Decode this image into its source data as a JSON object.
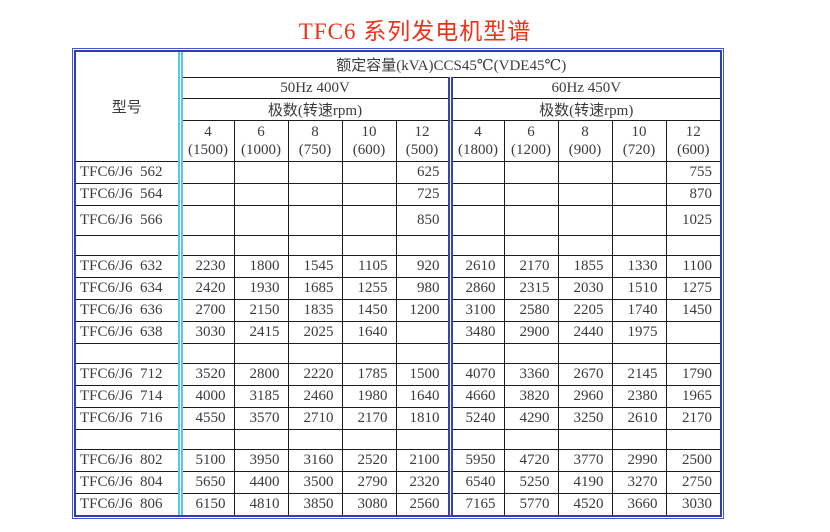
{
  "title": "TFC6 系列发电机型谱",
  "colors": {
    "title_red": "#ed3118",
    "outer_border_blue": "#2e3eb2",
    "model_divider_cyan": "#58c6ee",
    "group_divider_blue": "#3243b6",
    "grid_line": "#1b1b1b"
  },
  "table": {
    "model_header": "型号",
    "capacity_header": "额定容量(kVA)CCS45℃(VDE45℃)",
    "groups": [
      {
        "label": "50Hz 400V",
        "poles_label": "极数(转速rpm)"
      },
      {
        "label": "60Hz 450V",
        "poles_label": "极数(转速rpm)"
      }
    ],
    "columns": [
      {
        "pole": "4",
        "rpm": "(1500)"
      },
      {
        "pole": "6",
        "rpm": "(1000)"
      },
      {
        "pole": "8",
        "rpm": "(750)"
      },
      {
        "pole": "10",
        "rpm": "(600)"
      },
      {
        "pole": "12",
        "rpm": "(500)"
      },
      {
        "pole": "4",
        "rpm": "(1800)"
      },
      {
        "pole": "6",
        "rpm": "(1200)"
      },
      {
        "pole": "8",
        "rpm": "(900)"
      },
      {
        "pole": "10",
        "rpm": "(720)"
      },
      {
        "pole": "12",
        "rpm": "(600)"
      }
    ],
    "rows": [
      {
        "model": "TFC6/J6  562",
        "values": [
          "",
          "",
          "",
          "",
          "625",
          "",
          "",
          "",
          "",
          "755"
        ]
      },
      {
        "model": "TFC6/J6  564",
        "values": [
          "",
          "",
          "",
          "",
          "725",
          "",
          "",
          "",
          "",
          "870"
        ]
      },
      {
        "model": "TFC6/J6  566",
        "tall": true,
        "values": [
          "",
          "",
          "",
          "",
          "850",
          "",
          "",
          "",
          "",
          "1025"
        ]
      },
      {
        "spacer": true,
        "model": "",
        "values": [
          "",
          "",
          "",
          "",
          "",
          "",
          "",
          "",
          "",
          ""
        ]
      },
      {
        "model": "TFC6/J6  632",
        "values": [
          "2230",
          "1800",
          "1545",
          "1105",
          "920",
          "2610",
          "2170",
          "1855",
          "1330",
          "1100"
        ]
      },
      {
        "model": "TFC6/J6  634",
        "values": [
          "2420",
          "1930",
          "1685",
          "1255",
          "980",
          "2860",
          "2315",
          "2030",
          "1510",
          "1275"
        ]
      },
      {
        "model": "TFC6/J6  636",
        "values": [
          "2700",
          "2150",
          "1835",
          "1450",
          "1200",
          "3100",
          "2580",
          "2205",
          "1740",
          "1450"
        ]
      },
      {
        "model": "TFC6/J6  638",
        "values": [
          "3030",
          "2415",
          "2025",
          "1640",
          "",
          "3480",
          "2900",
          "2440",
          "1975",
          ""
        ]
      },
      {
        "spacer": true,
        "model": "",
        "values": [
          "",
          "",
          "",
          "",
          "",
          "",
          "",
          "",
          "",
          ""
        ]
      },
      {
        "model": "TFC6/J6  712",
        "values": [
          "3520",
          "2800",
          "2220",
          "1785",
          "1500",
          "4070",
          "3360",
          "2670",
          "2145",
          "1790"
        ]
      },
      {
        "model": "TFC6/J6  714",
        "values": [
          "4000",
          "3185",
          "2460",
          "1980",
          "1640",
          "4660",
          "3820",
          "2960",
          "2380",
          "1965"
        ]
      },
      {
        "model": "TFC6/J6  716",
        "values": [
          "4550",
          "3570",
          "2710",
          "2170",
          "1810",
          "5240",
          "4290",
          "3250",
          "2610",
          "2170"
        ]
      },
      {
        "spacer": true,
        "model": "",
        "values": [
          "",
          "",
          "",
          "",
          "",
          "",
          "",
          "",
          "",
          ""
        ]
      },
      {
        "model": "TFC6/J6  802",
        "values": [
          "5100",
          "3950",
          "3160",
          "2520",
          "2100",
          "5950",
          "4720",
          "3770",
          "2990",
          "2500"
        ]
      },
      {
        "model": "TFC6/J6  804",
        "values": [
          "5650",
          "4400",
          "3500",
          "2790",
          "2320",
          "6540",
          "5250",
          "4190",
          "3270",
          "2750"
        ]
      },
      {
        "model": "TFC6/J6  806",
        "values": [
          "6150",
          "4810",
          "3850",
          "3080",
          "2560",
          "7165",
          "5770",
          "4520",
          "3660",
          "3030"
        ]
      }
    ]
  }
}
